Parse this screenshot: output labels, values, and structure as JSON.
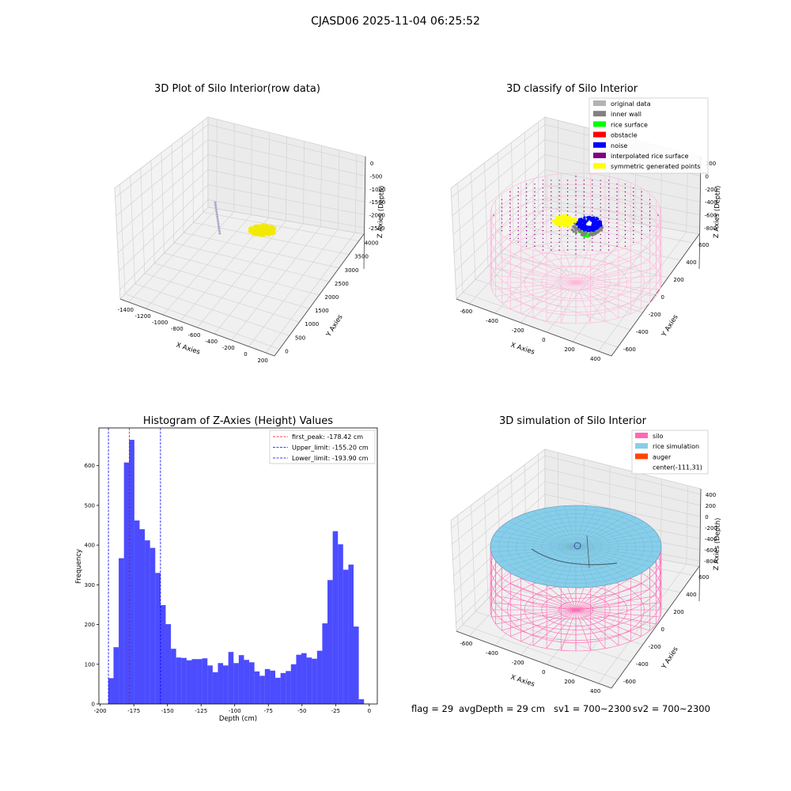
{
  "suptitle": "CJASD06 2025-11-04 06:25:52",
  "status_line": {
    "flag": "flag = 29",
    "avg_depth": "avgDepth = 29 cm",
    "sv1": "sv1 = 700~2300",
    "sv2": "sv2 = 700~2300"
  },
  "chart_data": [
    {
      "type": "scatter3d",
      "title": "3D Plot of Silo Interior(row data)",
      "xlabel": "X Axies",
      "ylabel": "Y Axies",
      "zlabel": "Z Axies (Depth)",
      "xticks": [
        "-1400",
        "-1200",
        "-1000",
        "-800",
        "-600",
        "-400",
        "-200",
        "0",
        "200"
      ],
      "yticks": [
        "0",
        "500",
        "1000",
        "1500",
        "2000",
        "2500",
        "3000",
        "3500",
        "4000"
      ],
      "zticks": [
        "0",
        "-500",
        "-1000",
        "-1500",
        "-2000",
        "-2500"
      ],
      "series": [
        {
          "color": "#b0a8c8",
          "shape": "vertical line of points"
        },
        {
          "color": "#f2ea00",
          "shape": "dense blob"
        }
      ]
    },
    {
      "type": "scatter3d",
      "title": "3D classify of Silo Interior",
      "xlabel": "X Axies",
      "ylabel": "Y Axies",
      "zlabel": "Z Axies (Depth)",
      "xticks": [
        "-600",
        "-400",
        "-200",
        "0",
        "200",
        "400"
      ],
      "yticks": [
        "-600",
        "-400",
        "-200",
        "0",
        "200",
        "400",
        "600"
      ],
      "zticks": [
        "200",
        "0",
        "-200",
        "-400",
        "-600",
        "-800"
      ],
      "legend": "top-right",
      "legend_entries": [
        {
          "label": "original data",
          "color": "#b3b3b3"
        },
        {
          "label": "inner wall",
          "color": "#808080"
        },
        {
          "label": "rice surface",
          "color": "#00ff00"
        },
        {
          "label": "obstacle",
          "color": "#ff0000"
        },
        {
          "label": "noise",
          "color": "#0000ff"
        },
        {
          "label": "interpolated rice surface",
          "color": "#800080"
        },
        {
          "label": "symmetric generated points",
          "color": "#ffff00"
        }
      ]
    },
    {
      "type": "histogram",
      "title": "Histogram of Z-Axies (Height) Values",
      "xlabel": "Depth (cm)",
      "ylabel": "Frequency",
      "xlim": [
        -201,
        6
      ],
      "ylim": [
        0,
        695
      ],
      "xticks": [
        -200,
        -175,
        -150,
        -125,
        -100,
        -75,
        -50,
        -25,
        0
      ],
      "yticks": [
        0,
        100,
        200,
        300,
        400,
        500,
        600
      ],
      "bin_start": -194,
      "bin_width": 3.88,
      "values": [
        65,
        143,
        367,
        608,
        665,
        462,
        440,
        412,
        393,
        330,
        249,
        201,
        139,
        117,
        116,
        110,
        113,
        113,
        115,
        97,
        80,
        103,
        97,
        131,
        103,
        123,
        111,
        105,
        82,
        71,
        88,
        84,
        66,
        78,
        83,
        100,
        124,
        128,
        117,
        114,
        134,
        203,
        312,
        435,
        402,
        338,
        351,
        195,
        12,
        1
      ],
      "bar_color": "#0000ff",
      "bar_alpha": 0.7,
      "vlines": [
        {
          "x": -178.42,
          "color": "#ff0000",
          "label": "first_peak: -178.42 cm"
        },
        {
          "x": -155.2,
          "color": "#0000ff",
          "label": "Upper_limit: -155.20 cm"
        },
        {
          "x": -193.9,
          "color": "#0000ff",
          "label": "Lower_limit: -193.90 cm"
        }
      ],
      "legend": "top-right"
    },
    {
      "type": "surface3d",
      "title": "3D simulation of Silo Interior",
      "xlabel": "X Axies",
      "ylabel": "Y Axies",
      "zlabel": "Z Axies (Depth)",
      "xticks": [
        "-600",
        "-400",
        "-200",
        "0",
        "200",
        "400"
      ],
      "yticks": [
        "-600",
        "-400",
        "-200",
        "0",
        "200",
        "400",
        "600"
      ],
      "zticks": [
        "400",
        "200",
        "0",
        "-200",
        "-400",
        "-600",
        "-800"
      ],
      "legend": "top-right",
      "legend_entries": [
        {
          "label": "silo",
          "color": "#ff69b4"
        },
        {
          "label": "rice simulation",
          "color": "#87ceeb"
        },
        {
          "label": "auger",
          "color": "#ff4500"
        },
        {
          "label": "center(-111,31)",
          "color": ""
        }
      ]
    }
  ]
}
